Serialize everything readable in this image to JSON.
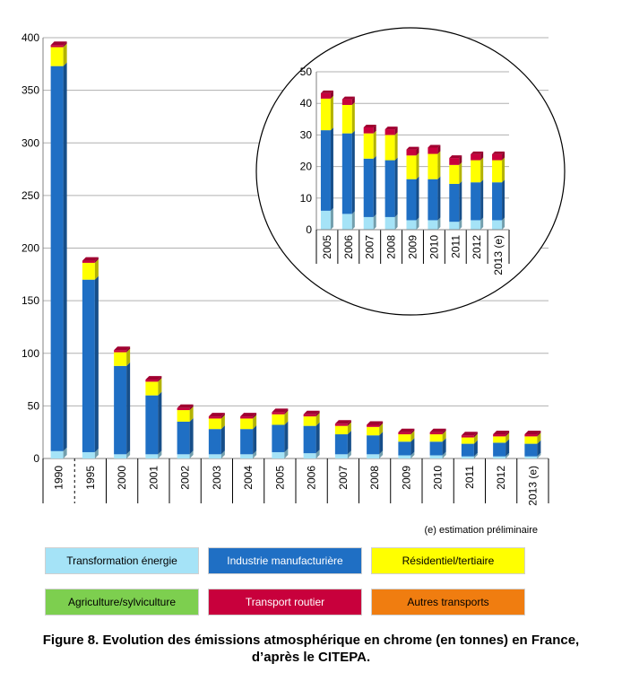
{
  "chart_data": [
    {
      "type": "bar",
      "stacked": true,
      "categories": [
        "1990",
        "1995",
        "2000",
        "2001",
        "2002",
        "2003",
        "2004",
        "2005",
        "2006",
        "2007",
        "2008",
        "2009",
        "2010",
        "2011",
        "2012",
        "2013 (e)"
      ],
      "series": [
        {
          "name": "Transformation énergie",
          "values": [
            7,
            6,
            4,
            4,
            4,
            4,
            4,
            6,
            5,
            4,
            4,
            3,
            3,
            2,
            2,
            2
          ]
        },
        {
          "name": "Industrie manufacturière",
          "values": [
            366,
            164,
            84,
            56,
            31,
            24,
            24,
            26,
            26,
            19,
            18,
            13,
            13,
            12,
            13,
            12
          ]
        },
        {
          "name": "Résidentiel/tertiaire",
          "values": [
            18,
            16,
            13,
            13,
            11,
            10,
            10,
            10,
            9,
            8,
            8,
            7,
            7,
            6,
            6,
            7
          ]
        },
        {
          "name": "Agriculture/sylviculture",
          "values": [
            0,
            0,
            0,
            0,
            0,
            0,
            0,
            0,
            0,
            0,
            0,
            0,
            0,
            0,
            0,
            0
          ]
        },
        {
          "name": "Transport routier",
          "values": [
            2,
            2,
            2,
            2,
            2,
            2,
            2,
            2,
            2,
            2,
            2,
            2,
            2,
            2,
            2,
            2
          ]
        },
        {
          "name": "Autres transports",
          "values": [
            0,
            0,
            0,
            0,
            0,
            0,
            0,
            0,
            0,
            0,
            0,
            0,
            0,
            0,
            0,
            0
          ]
        }
      ],
      "y_ticks": [
        "0",
        "50",
        "100",
        "150",
        "200",
        "250",
        "300",
        "350",
        "400"
      ],
      "ylim": [
        0,
        400
      ],
      "grid": true,
      "title": "",
      "xlabel": "",
      "ylabel": ""
    },
    {
      "type": "bar",
      "stacked": true,
      "inset": true,
      "categories": [
        "2005",
        "2006",
        "2007",
        "2008",
        "2009",
        "2010",
        "2011",
        "2012",
        "2013 (e)"
      ],
      "series": [
        {
          "name": "Transformation énergie",
          "values": [
            6,
            5,
            4,
            4,
            3,
            3,
            2.5,
            3,
            3
          ]
        },
        {
          "name": "Industrie manufacturière",
          "values": [
            25.5,
            25.5,
            18.5,
            18,
            13,
            13,
            12,
            12,
            12
          ]
        },
        {
          "name": "Résidentiel/tertiaire",
          "values": [
            10,
            9,
            8,
            8,
            7.5,
            8,
            6,
            7,
            7
          ]
        },
        {
          "name": "Agriculture/sylviculture",
          "values": [
            0,
            0,
            0,
            0,
            0,
            0,
            0,
            0,
            0
          ]
        },
        {
          "name": "Transport routier",
          "values": [
            1.7,
            1.8,
            1.9,
            1.8,
            1.9,
            2.0,
            2.2,
            1.9,
            1.9
          ]
        },
        {
          "name": "Autres transports",
          "values": [
            0,
            0,
            0,
            0,
            0,
            0,
            0,
            0,
            0
          ]
        }
      ],
      "y_ticks": [
        "0",
        "10",
        "20",
        "30",
        "40",
        "50"
      ],
      "ylim": [
        0,
        50
      ],
      "grid": true
    }
  ],
  "note": "(e) estimation préliminaire",
  "legend": [
    {
      "label": "Transformation énergie",
      "color": "#a5e3f7"
    },
    {
      "label": "Industrie manufacturière",
      "color": "#1f6fc4"
    },
    {
      "label": "Résidentiel/tertiaire",
      "color": "#ffff00"
    },
    {
      "label": "Agriculture/sylviculture",
      "color": "#7dcf4f"
    },
    {
      "label": "Transport routier",
      "color": "#c8003c"
    },
    {
      "label": "Autres transports",
      "color": "#f07d10"
    }
  ],
  "caption": {
    "line1": "Figure 8. Evolution des émissions atmosphérique en chrome (en tonnes) en France,",
    "line2": "d’après le CITEPA."
  }
}
